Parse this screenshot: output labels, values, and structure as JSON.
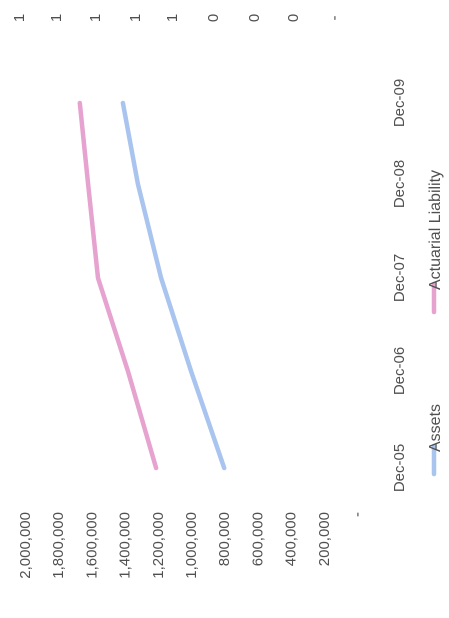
{
  "chart_data": {
    "type": "line",
    "orientation": "rotated-90-ccw",
    "x": [
      "Dec-05",
      "Dec-06",
      "Dec-07",
      "Dec-08",
      "Dec-09"
    ],
    "series": [
      {
        "name": "Assets",
        "color": "#a9c4ee",
        "values": [
          800000,
          1000000,
          1180000,
          1320000,
          1410000
        ]
      },
      {
        "name": "Actuarial Liability",
        "color": "#e6a3cf",
        "values": [
          1210000,
          1380000,
          1560000,
          1620000,
          1670000
        ]
      }
    ],
    "y_ticks": [
      "2,000,000",
      "1,800,000",
      "1,600,000",
      "1,400,000",
      "1,200,000",
      "1,000,000",
      "800,000",
      "600,000",
      "400,000",
      "200,000",
      "-"
    ],
    "ylim": [
      0,
      2000000
    ],
    "grid": false,
    "legend": "bottom",
    "neighbor_tick_labels": [
      "1",
      "1",
      "1",
      "1",
      "1",
      "0",
      "0",
      "0",
      "-"
    ]
  }
}
